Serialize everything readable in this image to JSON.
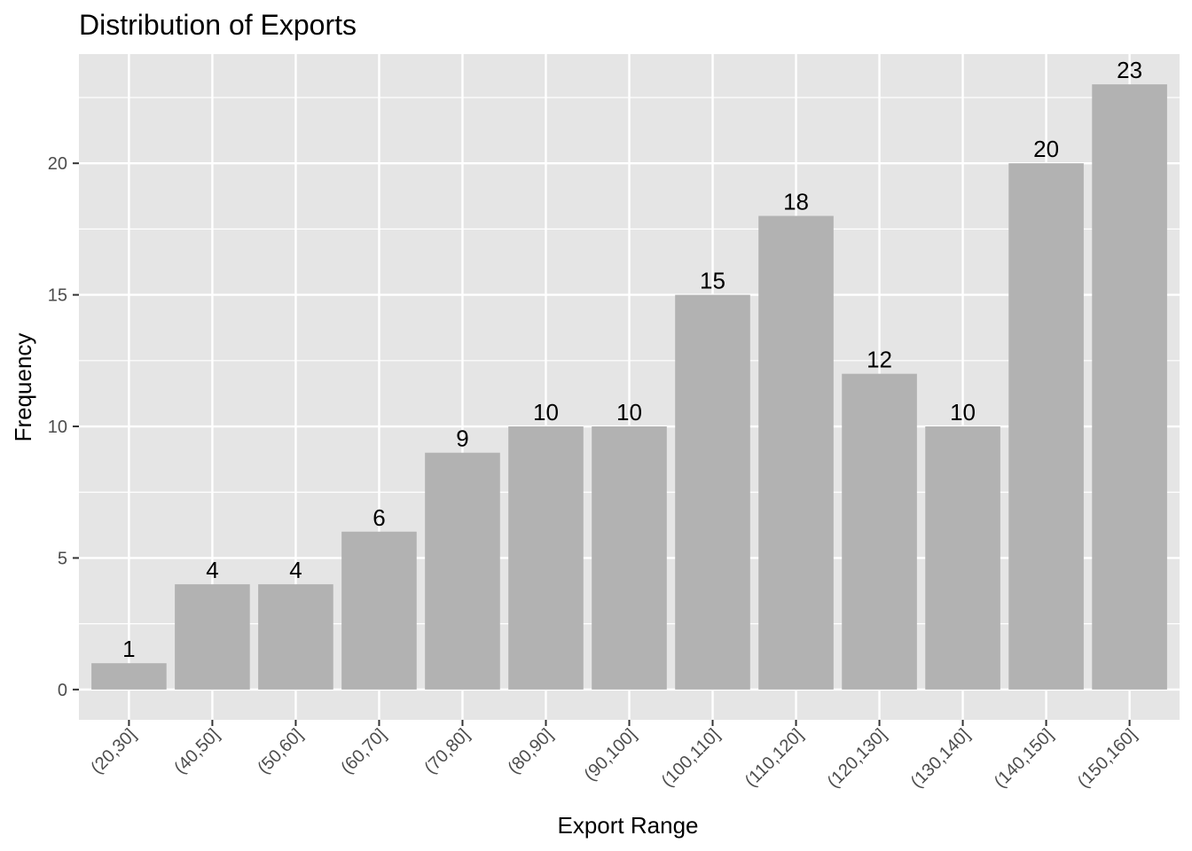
{
  "chart_data": {
    "type": "bar",
    "title": "Distribution of Exports",
    "xlabel": "Export Range",
    "ylabel": "Frequency",
    "categories": [
      "(20,30]",
      "(40,50]",
      "(50,60]",
      "(60,70]",
      "(70,80]",
      "(80,90]",
      "(90,100]",
      "(100,110]",
      "(110,120]",
      "(120,130]",
      "(130,140]",
      "(140,150]",
      "(150,160]"
    ],
    "values": [
      1,
      4,
      4,
      6,
      9,
      10,
      10,
      15,
      18,
      12,
      10,
      20,
      23
    ],
    "ylim": [
      -1.15,
      24.15
    ],
    "yticks": [
      0,
      5,
      10,
      15,
      20
    ],
    "grid": true,
    "legend": "none",
    "colors": {
      "panel": "#e5e5e5",
      "bar": "#b2b2b2",
      "grid": "#ffffff",
      "tick_text": "#4d4d4d",
      "text": "#000000"
    }
  }
}
